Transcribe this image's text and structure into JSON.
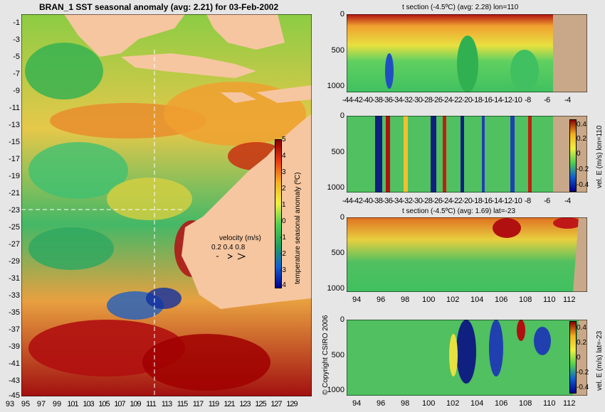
{
  "map": {
    "title": "BRAN_1 SST seasonal anomaly (avg: 2.21) for 03-Feb-2002",
    "y_ticks": [
      "-1",
      "-3",
      "-5",
      "-7",
      "-9",
      "-11",
      "-13",
      "-15",
      "-17",
      "-19",
      "-21",
      "-23",
      "-25",
      "-27",
      "-29",
      "-31",
      "-33",
      "-35",
      "-37",
      "-39",
      "-41",
      "-43",
      "-45"
    ],
    "x_ticks": [
      "93",
      "95",
      "97",
      "99",
      "101",
      "103",
      "105",
      "107",
      "109",
      "111",
      "113",
      "115",
      "117",
      "119",
      "121",
      "123",
      "125",
      "127",
      "129"
    ],
    "colorbar": {
      "label": "temperature seasonal anomaly (ºC)",
      "ticks": [
        "5",
        "4",
        "3",
        "2",
        "1",
        "0",
        "-1",
        "-2",
        "-3",
        "-4"
      ]
    },
    "velocity_legend": {
      "title": "velocity (m/s)",
      "values": "0.2 0.4 0.8"
    },
    "copyright": "© Copyright CSIRO 2006",
    "colors": {
      "land": "#f6c6a0",
      "warm": "#a00000",
      "cool": "#2a9a4c"
    }
  },
  "chart_data": [
    {
      "type": "heatmap",
      "title": "BRAN_1 SST seasonal anomaly (avg: 2.21) for 03-Feb-2002",
      "xlim": [
        93,
        130
      ],
      "ylim": [
        -45,
        0
      ],
      "colorbar_range": [
        -4,
        5
      ],
      "average": 2.21,
      "section_lines": {
        "lon": 110,
        "lat": -23
      }
    },
    {
      "type": "heatmap",
      "title": "t section (-4.5ºC) (avg: 2.28) lon=110",
      "x_ticks": [
        "-44",
        "-42",
        "-40",
        "-38",
        "-36",
        "-34",
        "-32",
        "-30",
        "-28",
        "-26",
        "-24",
        "-22",
        "-20",
        "-18",
        "-16",
        "-14",
        "-12",
        "-10",
        "-8",
        "-6",
        "-4"
      ],
      "y_ticks": [
        "0",
        "500",
        "1000"
      ],
      "ylim": [
        1050,
        0
      ]
    },
    {
      "type": "heatmap",
      "title": "",
      "colorbar_label": "vel. E (m/s) lon=110",
      "colorbar_ticks": [
        "0.4",
        "0.2",
        "0",
        "-0.2",
        "-0.4"
      ],
      "x_ticks": [
        "-44",
        "-42",
        "-40",
        "-38",
        "-36",
        "-34",
        "-32",
        "-30",
        "-28",
        "-26",
        "-24",
        "-22",
        "-20",
        "-18",
        "-16",
        "-14",
        "-12",
        "-10",
        "-8",
        "-6",
        "-4"
      ],
      "y_ticks": [
        "0",
        "500",
        "1000"
      ]
    },
    {
      "type": "heatmap",
      "title": "t section (-4.5ºC) (avg: 1.69) lat=-23",
      "x_ticks": [
        "94",
        "96",
        "98",
        "100",
        "102",
        "104",
        "106",
        "108",
        "110",
        "112"
      ],
      "y_ticks": [
        "0",
        "500",
        "1000"
      ]
    },
    {
      "type": "heatmap",
      "title": "",
      "colorbar_label": "vel. E (m/s) lat=-23",
      "colorbar_ticks": [
        "0.4",
        "0.2",
        "0",
        "-0.2",
        "-0.4"
      ],
      "x_ticks": [
        "94",
        "96",
        "98",
        "100",
        "102",
        "104",
        "106",
        "108",
        "110",
        "112"
      ],
      "y_ticks": [
        "0",
        "500",
        "1000"
      ]
    }
  ]
}
